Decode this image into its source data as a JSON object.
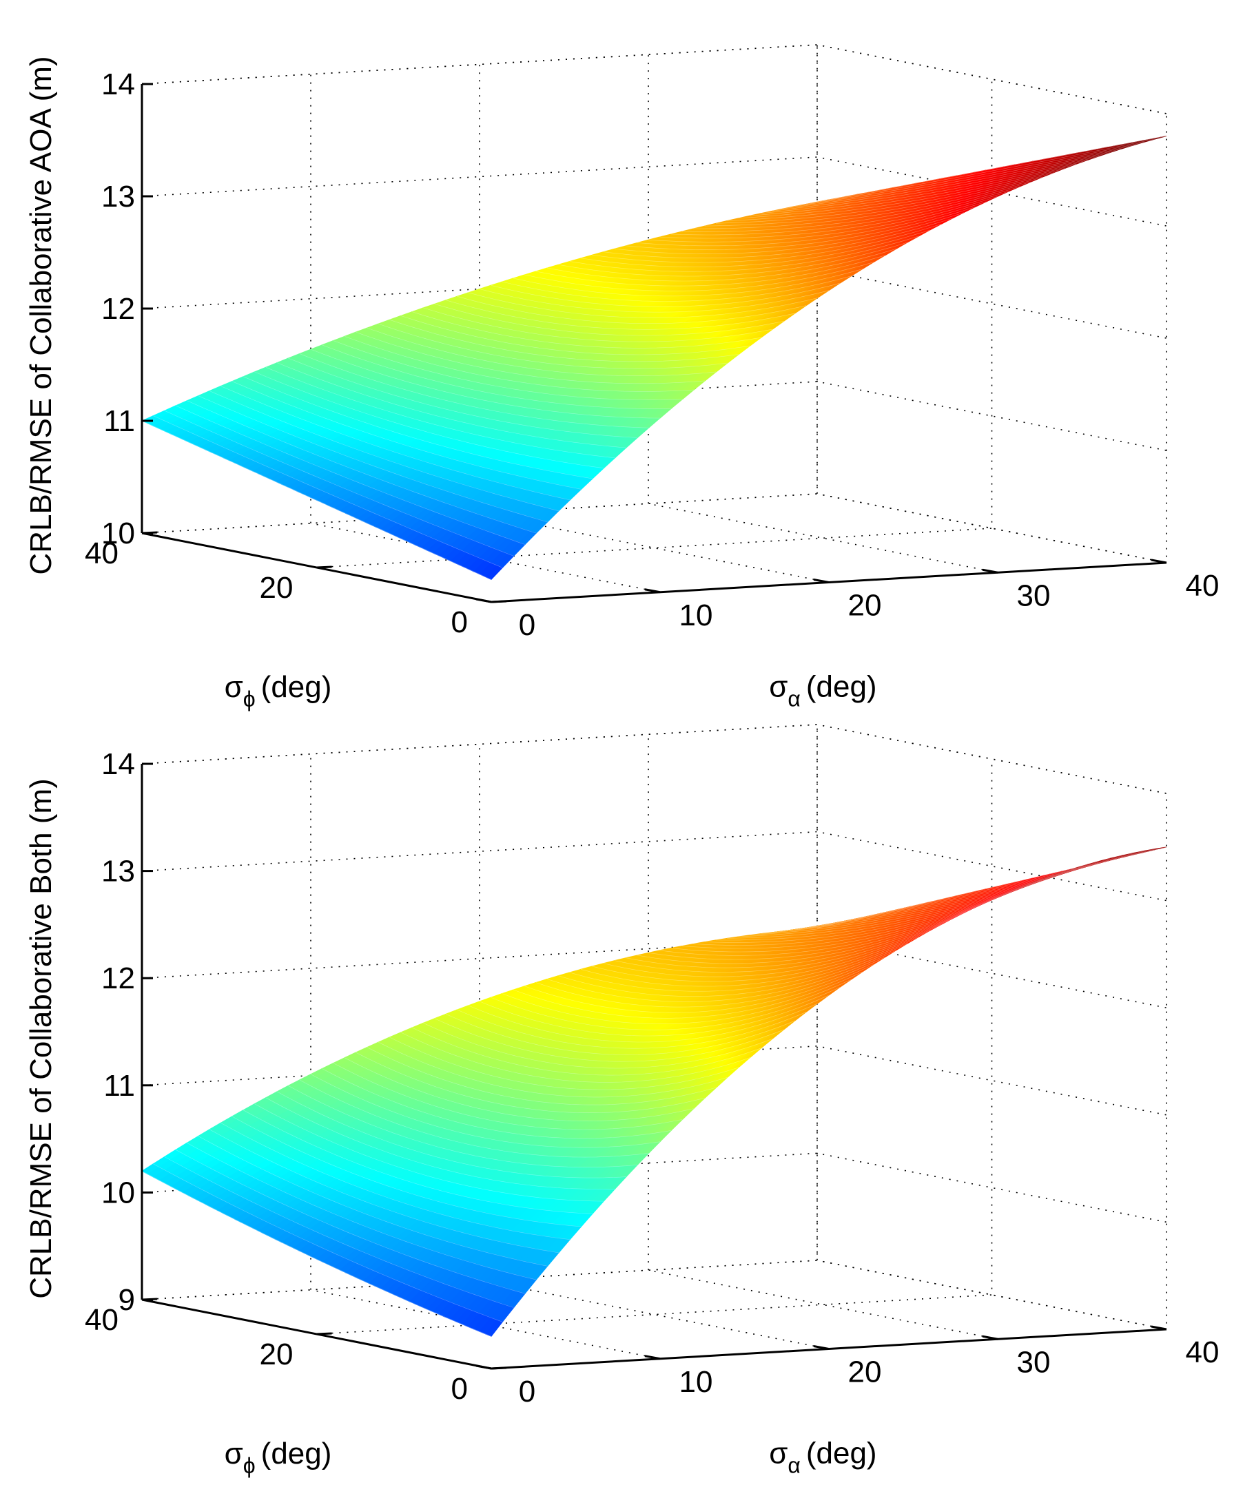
{
  "chart_data": [
    {
      "type": "surface",
      "name": "collaborative-aoa",
      "zlabel": "CRLB/RMSE of Collaborative AOA (m)",
      "xlabel": {
        "symbol": "σ",
        "sub": "α",
        "unit": "(deg)"
      },
      "ylabel": {
        "symbol": "σ",
        "sub": "ϕ",
        "unit": "(deg)"
      },
      "xlim": [
        0,
        40
      ],
      "ylim": [
        0,
        40
      ],
      "zlim": [
        10,
        14
      ],
      "xticks": [
        "0",
        "10",
        "20",
        "30",
        "40"
      ],
      "yticks": [
        "0",
        "20",
        "40"
      ],
      "zticks": [
        "10",
        "11",
        "12",
        "13",
        "14"
      ],
      "grid": true,
      "colormap": "jet",
      "surface_samples": {
        "x_values": [
          0,
          20,
          40
        ],
        "y_values": [
          0,
          20,
          40
        ],
        "z": [
          [
            10.2,
            12.6,
            13.8
          ],
          [
            10.6,
            12.1,
            13.2
          ],
          [
            11.0,
            12.0,
            12.6
          ]
        ]
      }
    },
    {
      "type": "surface",
      "name": "collaborative-both",
      "zlabel": "CRLB/RMSE of Collaborative Both (m)",
      "xlabel": {
        "symbol": "σ",
        "sub": "α",
        "unit": "(deg)"
      },
      "ylabel": {
        "symbol": "σ",
        "sub": "ϕ",
        "unit": "(deg)"
      },
      "xlim": [
        0,
        40
      ],
      "ylim": [
        0,
        40
      ],
      "zlim": [
        9,
        14
      ],
      "xticks": [
        "0",
        "10",
        "20",
        "30",
        "40"
      ],
      "yticks": [
        "0",
        "20",
        "40"
      ],
      "zticks": [
        "9",
        "10",
        "11",
        "12",
        "13",
        "14"
      ],
      "grid": true,
      "colormap": "jet",
      "surface_samples": {
        "x_values": [
          0,
          20,
          40
        ],
        "y_values": [
          0,
          20,
          40
        ],
        "z": [
          [
            9.3,
            12.3,
            13.5
          ],
          [
            9.7,
            11.6,
            12.8
          ],
          [
            10.2,
            11.6,
            12.1
          ]
        ]
      }
    }
  ]
}
